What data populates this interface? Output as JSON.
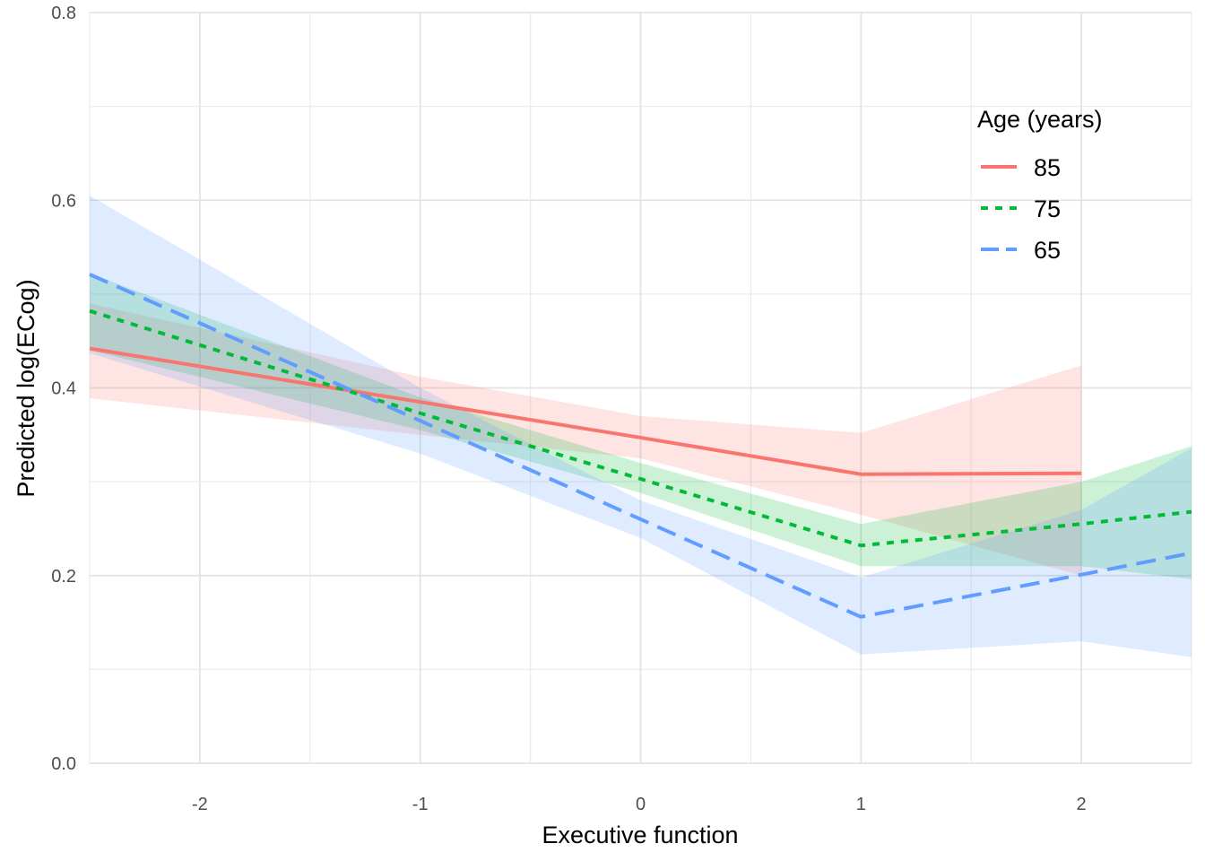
{
  "chart_data": {
    "type": "line",
    "xlabel": "Executive function",
    "ylabel": "Predicted log(ECog)",
    "xlim": [
      -2.5,
      2.5
    ],
    "ylim": [
      0.0,
      0.8
    ],
    "x_ticks": [
      -2,
      -1,
      0,
      1,
      2
    ],
    "x_tick_labels": [
      "-2",
      "-1",
      "0",
      "1",
      "2"
    ],
    "y_ticks": [
      0.0,
      0.2,
      0.4,
      0.6,
      0.8
    ],
    "y_tick_labels": [
      "0.0",
      "0.2",
      "0.4",
      "0.6",
      "0.8"
    ],
    "grid": true,
    "legend": {
      "title": "Age (years)",
      "position": "top-right"
    },
    "series": [
      {
        "name": "85",
        "color": "#f8766d",
        "dash": "solid",
        "x": [
          -2.5,
          -1,
          0,
          1,
          2
        ],
        "y": [
          0.442,
          0.385,
          0.347,
          0.308,
          0.309
        ],
        "lower": [
          0.389,
          0.35,
          0.325,
          0.265,
          0.2
        ],
        "upper": [
          0.49,
          0.412,
          0.37,
          0.352,
          0.424
        ]
      },
      {
        "name": "75",
        "color": "#00ba38",
        "dash": "dotted",
        "x": [
          -2.5,
          -1,
          0,
          1,
          2,
          2.5
        ],
        "y": [
          0.482,
          0.373,
          0.303,
          0.232,
          0.255,
          0.268
        ],
        "lower": [
          0.44,
          0.355,
          0.288,
          0.21,
          0.21,
          0.196
        ],
        "upper": [
          0.522,
          0.39,
          0.32,
          0.255,
          0.3,
          0.338
        ]
      },
      {
        "name": "65",
        "color": "#619cff",
        "dash": "dashed",
        "x": [
          -2.5,
          -1,
          0,
          1,
          2,
          2.5
        ],
        "y": [
          0.521,
          0.365,
          0.26,
          0.156,
          0.201,
          0.224
        ],
        "lower": [
          0.437,
          0.33,
          0.24,
          0.116,
          0.13,
          0.113
        ],
        "upper": [
          0.605,
          0.4,
          0.28,
          0.198,
          0.27,
          0.336
        ]
      }
    ]
  }
}
